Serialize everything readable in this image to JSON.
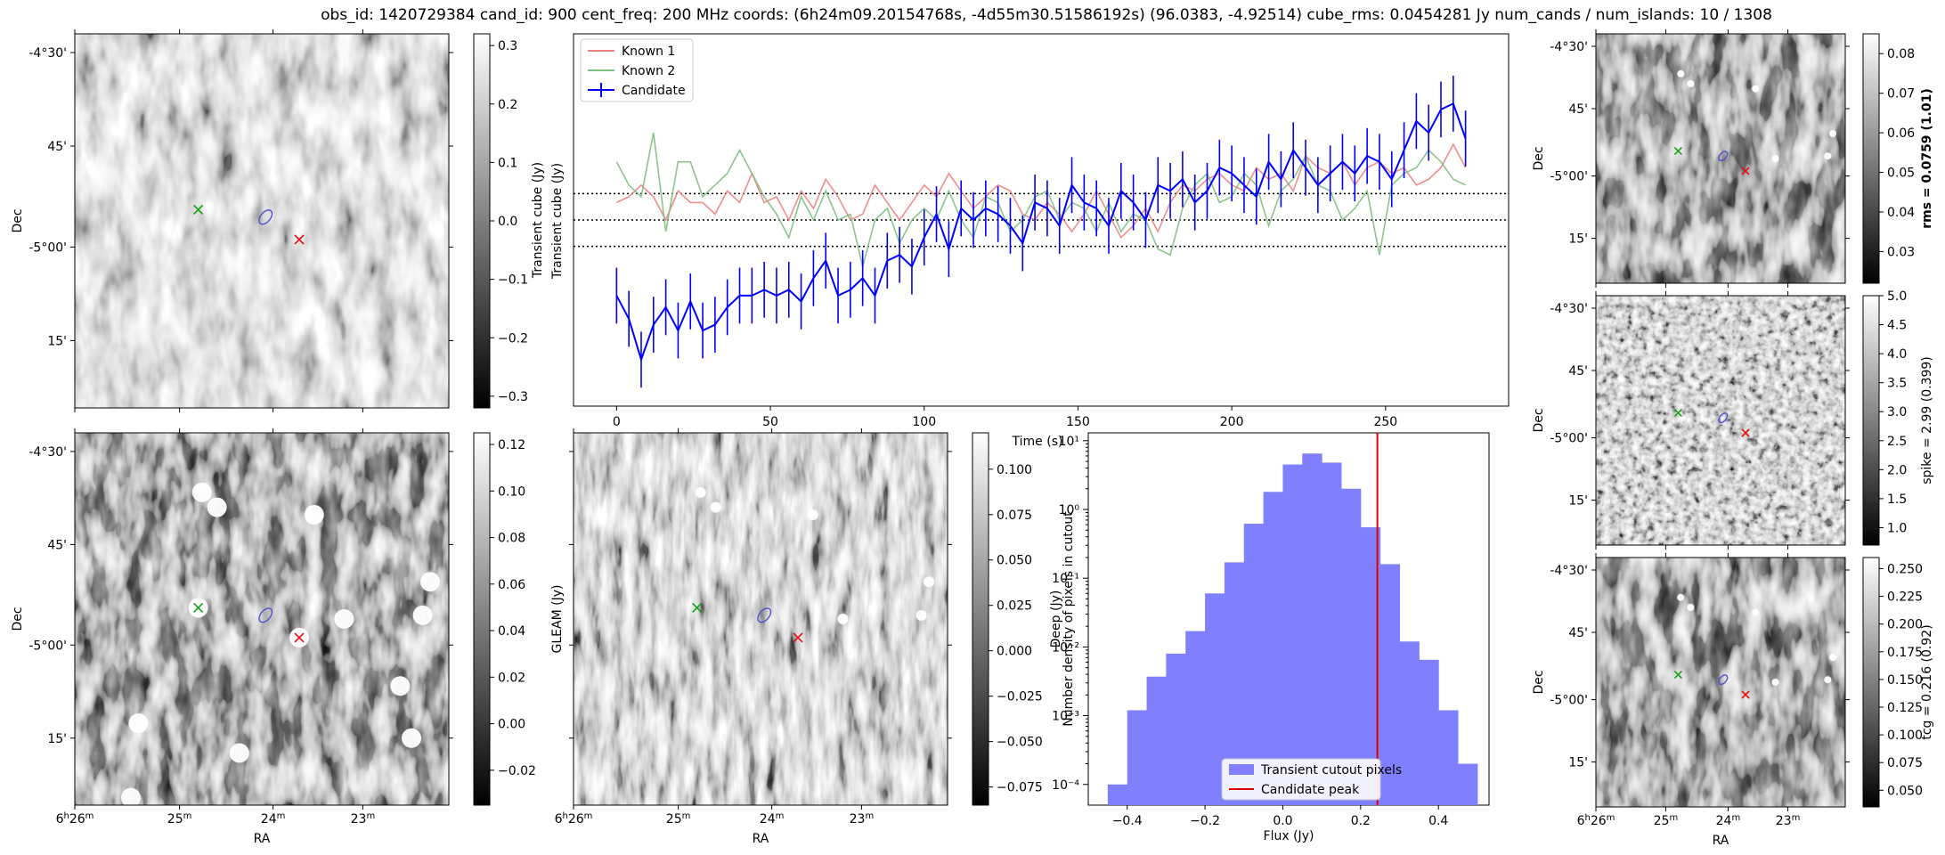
{
  "title": "obs_id: 1420729384 cand_id: 900 cent_freq: 200 MHz coords: (6h24m09.20154768s, -4d55m30.51586192s) (96.0383, -4.92514) cube_rms: 0.0454281 Jy num_cands / num_islands: 10 / 1308",
  "images": {
    "dec_ticks": [
      "-4°30'",
      "45'",
      "-5°00'",
      "15'"
    ],
    "ra_ticks": [
      "6h26m",
      "25m",
      "24m",
      "23m"
    ],
    "xlabel": "RA",
    "ylabel": "Dec",
    "panels": [
      {
        "name": "transient-image",
        "colorbar_label": "Transient cube (Jy)",
        "colorbar_ticks": [
          "0.3",
          "0.2",
          "0.1",
          "0.0",
          "−0.1",
          "−0.2",
          "−0.3"
        ],
        "colorbar_range": [
          -0.32,
          0.32
        ],
        "style": "gray"
      },
      {
        "name": "gleam-image",
        "colorbar_label": "GLEAM (Jy)",
        "colorbar_ticks": [
          "0.12",
          "0.10",
          "0.08",
          "0.06",
          "0.04",
          "0.02",
          "0.00",
          "−0.02"
        ],
        "colorbar_range": [
          -0.035,
          0.125
        ],
        "style": "dark"
      },
      {
        "name": "deep-image",
        "colorbar_label": "Deep (Jy)",
        "colorbar_ticks": [
          "0.100",
          "0.075",
          "0.050",
          "0.025",
          "0.000",
          "−0.025",
          "−0.050",
          "−0.075"
        ],
        "colorbar_range": [
          -0.085,
          0.12
        ],
        "style": "streak"
      },
      {
        "name": "rms-image",
        "colorbar_label": "rms = 0.0759 (1.01)",
        "colorbar_ticks": [
          "0.08",
          "0.07",
          "0.06",
          "0.05",
          "0.04",
          "0.03"
        ],
        "colorbar_range": [
          0.022,
          0.085
        ],
        "style": "dark"
      },
      {
        "name": "spike-image",
        "colorbar_label": "spike = 2.99 (0.399)",
        "colorbar_ticks": [
          "5.0",
          "4.5",
          "4.0",
          "3.5",
          "3.0",
          "2.5",
          "2.0",
          "1.5",
          "1.0"
        ],
        "colorbar_range": [
          0.7,
          5.0
        ],
        "style": "noise"
      },
      {
        "name": "tcg-image",
        "colorbar_label": "tcg = 0.216 (0.92)",
        "colorbar_ticks": [
          "0.250",
          "0.225",
          "0.200",
          "0.175",
          "0.150",
          "0.125",
          "0.100",
          "0.075",
          "0.050"
        ],
        "colorbar_range": [
          0.035,
          0.26
        ],
        "style": "dark"
      }
    ]
  },
  "chart_data": [
    {
      "type": "line",
      "title": "",
      "xlabel": "Time (s)",
      "ylabel": "Transient cube (Jy)",
      "xlim": [
        -14,
        290
      ],
      "ylim": [
        -0.32,
        0.32
      ],
      "x": [
        0,
        4,
        8,
        12,
        16,
        20,
        24,
        28,
        32,
        36,
        40,
        44,
        48,
        52,
        56,
        60,
        64,
        68,
        72,
        76,
        80,
        84,
        88,
        92,
        96,
        100,
        104,
        108,
        112,
        116,
        120,
        124,
        128,
        132,
        136,
        140,
        144,
        148,
        152,
        156,
        160,
        164,
        168,
        172,
        176,
        180,
        184,
        188,
        192,
        196,
        200,
        204,
        208,
        212,
        216,
        220,
        224,
        228,
        232,
        236,
        240,
        244,
        248,
        252,
        256,
        260,
        264,
        268,
        272,
        276
      ],
      "series": [
        {
          "name": "Known 1",
          "color": "#f08080",
          "values": [
            0.03,
            0.04,
            0.06,
            0.04,
            0.0,
            0.05,
            0.03,
            0.03,
            0.01,
            0.05,
            0.03,
            0.08,
            0.03,
            0.04,
            0.0,
            0.05,
            0.02,
            0.07,
            0.04,
            0.0,
            0.01,
            0.06,
            0.03,
            0.0,
            0.03,
            0.06,
            0.04,
            0.08,
            0.05,
            0.02,
            0.04,
            0.06,
            0.05,
            0.01,
            0.0,
            0.03,
            0.01,
            -0.02,
            0.01,
            0.05,
            0.01,
            -0.03,
            -0.01,
            0.02,
            -0.02,
            0.03,
            0.06,
            0.05,
            0.07,
            0.08,
            0.06,
            0.05,
            0.09,
            0.07,
            0.08,
            0.05,
            0.11,
            0.09,
            0.08,
            0.1,
            0.06,
            0.09,
            0.1,
            0.08,
            0.09,
            0.06,
            0.07,
            0.09,
            0.13,
            0.09
          ]
        },
        {
          "name": "Known 2",
          "color": "#7fbf7f",
          "values": [
            0.1,
            0.06,
            0.04,
            0.15,
            -0.02,
            0.1,
            0.1,
            0.04,
            0.06,
            0.08,
            0.12,
            0.08,
            0.04,
            0.01,
            -0.03,
            0.04,
            0.0,
            0.05,
            0.0,
            0.01,
            -0.08,
            0.0,
            0.02,
            -0.04,
            0.0,
            0.02,
            0.0,
            0.05,
            0.0,
            -0.03,
            0.04,
            0.03,
            -0.02,
            0.0,
            0.04,
            0.05,
            0.0,
            0.03,
            0.02,
            -0.02,
            0.03,
            -0.02,
            0.01,
            0.0,
            -0.05,
            -0.06,
            0.02,
            0.06,
            0.08,
            0.03,
            0.04,
            0.08,
            0.06,
            -0.01,
            0.05,
            0.07,
            0.11,
            0.06,
            0.05,
            0.0,
            0.02,
            0.05,
            -0.06,
            0.06,
            0.08,
            0.09,
            0.12,
            0.1,
            0.07,
            0.06
          ]
        },
        {
          "name": "Candidate",
          "color": "#0000ff",
          "values": [
            -0.13,
            -0.17,
            -0.24,
            -0.18,
            -0.15,
            -0.19,
            -0.14,
            -0.19,
            -0.18,
            -0.15,
            -0.13,
            -0.13,
            -0.12,
            -0.13,
            -0.12,
            -0.14,
            -0.1,
            -0.07,
            -0.13,
            -0.12,
            -0.1,
            -0.13,
            -0.07,
            -0.06,
            -0.08,
            -0.03,
            0.01,
            -0.05,
            0.02,
            0.0,
            0.02,
            0.01,
            -0.01,
            -0.04,
            0.03,
            0.02,
            -0.01,
            0.06,
            0.03,
            0.02,
            -0.01,
            0.05,
            0.03,
            0.0,
            0.06,
            0.05,
            0.07,
            0.03,
            0.05,
            0.09,
            0.08,
            0.06,
            0.04,
            0.1,
            0.07,
            0.12,
            0.09,
            0.06,
            0.08,
            0.1,
            0.08,
            0.11,
            0.1,
            0.07,
            0.12,
            0.17,
            0.15,
            0.19,
            0.2,
            0.14
          ],
          "errors": 0.048
        }
      ],
      "hlines": [
        0.0454,
        0.0,
        -0.0454
      ],
      "xticks": [
        0,
        50,
        100,
        150,
        200,
        250
      ],
      "legend": "top-left"
    },
    {
      "type": "bar",
      "title": "",
      "xlabel": "Flux (Jy)",
      "ylabel": "Number density of pixels in cutout",
      "yscale": "log",
      "xlim": [
        -0.5,
        0.53
      ],
      "ylim": [
        5e-05,
        13
      ],
      "bin_edges": [
        -0.45,
        -0.4,
        -0.35,
        -0.3,
        -0.25,
        -0.2,
        -0.15,
        -0.1,
        -0.05,
        0.0,
        0.05,
        0.1,
        0.15,
        0.2,
        0.25,
        0.3,
        0.35,
        0.4,
        0.45,
        0.5
      ],
      "values": [
        0.0001,
        0.0012,
        0.0037,
        0.008,
        0.017,
        0.06,
        0.17,
        0.62,
        1.8,
        4.5,
        6.5,
        4.8,
        2.0,
        0.55,
        0.16,
        0.012,
        0.0065,
        0.0012,
        0.0002
      ],
      "xticks": [
        "−0.4",
        "−0.2",
        "0.0",
        "0.2",
        "0.4"
      ],
      "yticks": [
        "10¹",
        "10⁰",
        "10⁻¹",
        "10⁻²",
        "10⁻³",
        "10⁻⁴"
      ],
      "vline": 0.243,
      "legend": [
        "Transient cutout pixels",
        "Candidate peak"
      ],
      "legend_position": "bottom-center"
    }
  ]
}
